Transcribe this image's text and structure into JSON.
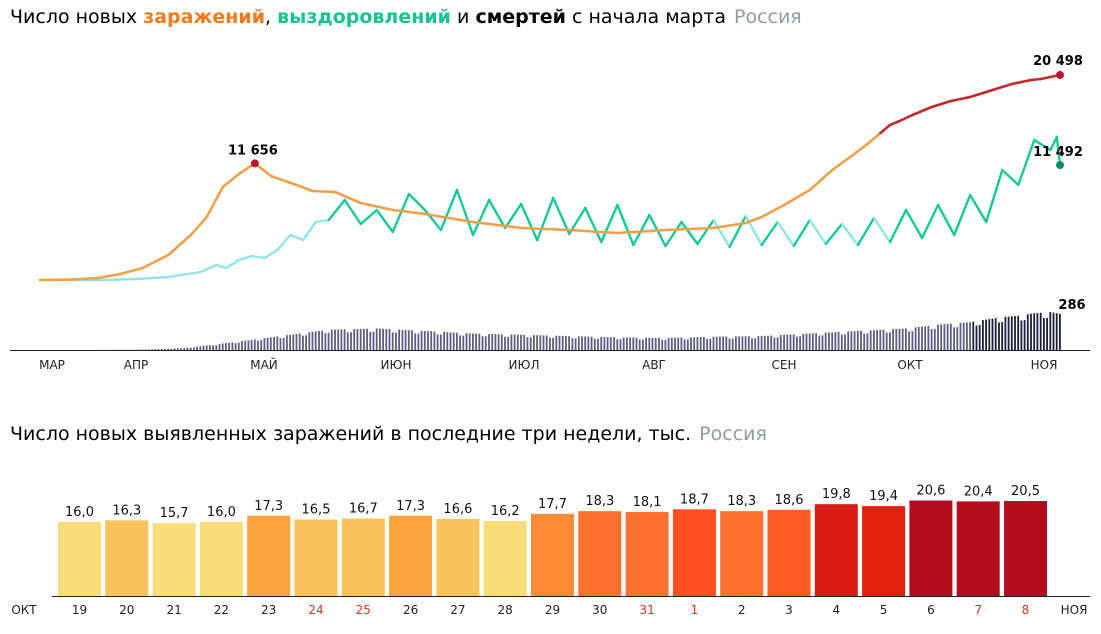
{
  "chart_data": [
    {
      "type": "line",
      "title": {
        "prefix": "Число новых ",
        "infections": "заражений",
        "comma": ",",
        "recoveries": "выздоровлений",
        "and": " и ",
        "deaths": "смертей",
        "suffix": " с начала марта",
        "region": "Россия"
      },
      "colors": {
        "infections_orange": "#f0a04a",
        "infections_red": "#c22a2a",
        "recoveries_dark": "#16c99a",
        "recoveries_light": "#8fe5e8",
        "recoveries_dot": "#0e8c6a",
        "deaths": "#5c5f84",
        "deaths_dark": "#1c1f3c",
        "infections_peak_dot": "#b8182c"
      },
      "month_labels": [
        "МАР",
        "АПР",
        "МАЙ",
        "ИЮН",
        "ИЮЛ",
        "АВГ",
        "СЕН",
        "ОКТ",
        "НОЯ"
      ],
      "annotations": {
        "infections_peak": "11 656",
        "infections_last": "20 498",
        "recoveries_last": "11 492",
        "deaths_last": "286"
      },
      "series": [
        {
          "key": "infections",
          "x_days": [
            0,
            10,
            18,
            25,
            32,
            40,
            47,
            52,
            57,
            62,
            67,
            72,
            80,
            85,
            92,
            100,
            110,
            120,
            135,
            150,
            165,
            180,
            195,
            210,
            220,
            225,
            232,
            240,
            247,
            253,
            258,
            262,
            265,
            268,
            272,
            275,
            278,
            281,
            284,
            287,
            290,
            294,
            297,
            300,
            303,
            306,
            309,
            312,
            315,
            318
          ],
          "values": [
            0,
            40,
            200,
            600,
            1200,
            2500,
            4500,
            6300,
            9300,
            10600,
            11656,
            10400,
            9500,
            8900,
            8800,
            7700,
            7000,
            6600,
            5800,
            5200,
            5000,
            4700,
            5000,
            5200,
            5700,
            6300,
            7500,
            9000,
            11000,
            12400,
            13600,
            14700,
            15500,
            15900,
            16500,
            16900,
            17300,
            17600,
            17900,
            18100,
            18300,
            18700,
            19000,
            19300,
            19600,
            19800,
            20000,
            20100,
            20300,
            20498
          ]
        },
        {
          "key": "recoveries",
          "x_days": [
            0,
            20,
            30,
            40,
            50,
            55,
            58,
            62,
            66,
            70,
            74,
            78,
            82,
            86,
            90,
            95,
            100,
            105,
            110,
            115,
            120,
            125,
            130,
            135,
            140,
            145,
            150,
            155,
            160,
            165,
            170,
            175,
            180,
            185,
            190,
            195,
            200,
            205,
            210,
            215,
            220,
            225,
            230,
            235,
            240,
            245,
            250,
            255,
            260,
            265,
            270,
            275,
            280,
            285,
            290,
            295,
            300,
            305,
            310,
            315,
            317,
            318
          ],
          "values": [
            0,
            0,
            100,
            300,
            800,
            1500,
            1200,
            2000,
            2400,
            2200,
            3000,
            4500,
            4000,
            5800,
            6000,
            8000,
            5600,
            7000,
            4800,
            8600,
            7000,
            5000,
            9000,
            4500,
            8000,
            5200,
            7600,
            4000,
            8200,
            4600,
            7200,
            3800,
            7500,
            3500,
            6500,
            3400,
            5800,
            3600,
            6000,
            3300,
            6400,
            3500,
            5800,
            3400,
            6000,
            3600,
            5600,
            3500,
            6200,
            3800,
            7000,
            4200,
            7500,
            4500,
            8500,
            5800,
            11000,
            9500,
            14000,
            13000,
            14300,
            11492
          ]
        },
        {
          "key": "deaths",
          "x_days": [
            0,
            15,
            30,
            45,
            60,
            75,
            90,
            105,
            120,
            135,
            150,
            165,
            180,
            195,
            210,
            225,
            240,
            255,
            270,
            280,
            290,
            300,
            305,
            310,
            315,
            318
          ],
          "values": [
            0,
            0,
            2,
            15,
            60,
            110,
            160,
            170,
            150,
            130,
            120,
            110,
            100,
            95,
            105,
            110,
            130,
            150,
            170,
            200,
            220,
            260,
            270,
            290,
            300,
            286
          ]
        }
      ]
    },
    {
      "type": "bar",
      "title": {
        "main": "Число новых выявленных заражений в последние три недели, тыс.",
        "region": "Россия"
      },
      "start_label": "ОКТ",
      "end_label": "НОЯ",
      "categories": [
        "19",
        "20",
        "21",
        "22",
        "23",
        "24",
        "25",
        "26",
        "27",
        "28",
        "29",
        "30",
        "31",
        "1",
        "2",
        "3",
        "4",
        "5",
        "6",
        "7",
        "8"
      ],
      "values": [
        16.0,
        16.3,
        15.7,
        16.0,
        17.3,
        16.5,
        16.7,
        17.3,
        16.6,
        16.2,
        17.7,
        18.3,
        18.1,
        18.7,
        18.3,
        18.6,
        19.8,
        19.4,
        20.6,
        20.4,
        20.5
      ],
      "value_labels": [
        "16,0",
        "16,3",
        "15,7",
        "16,0",
        "17,3",
        "16,5",
        "16,7",
        "17,3",
        "16,6",
        "16,2",
        "17,7",
        "18,3",
        "18,1",
        "18,7",
        "18,3",
        "18,6",
        "19,8",
        "19,4",
        "20,6",
        "20,4",
        "20,5"
      ],
      "weekend": [
        false,
        false,
        false,
        false,
        false,
        true,
        true,
        false,
        false,
        false,
        false,
        false,
        true,
        true,
        false,
        false,
        false,
        false,
        false,
        true,
        true
      ],
      "colors": [
        "#f9dd7a",
        "#fac35e",
        "#f9dd7a",
        "#f9dd7a",
        "#fba43f",
        "#fac35e",
        "#fac35e",
        "#fba43f",
        "#fac35e",
        "#f9dd7a",
        "#fd8a37",
        "#fe7030",
        "#fe7030",
        "#ff4e22",
        "#fe7030",
        "#fe5a25",
        "#d81b14",
        "#e1200f",
        "#b30c1c",
        "#b30c1c",
        "#b30c1c"
      ],
      "weekend_color": "#e3331c",
      "ylim": [
        0,
        22
      ]
    }
  ]
}
